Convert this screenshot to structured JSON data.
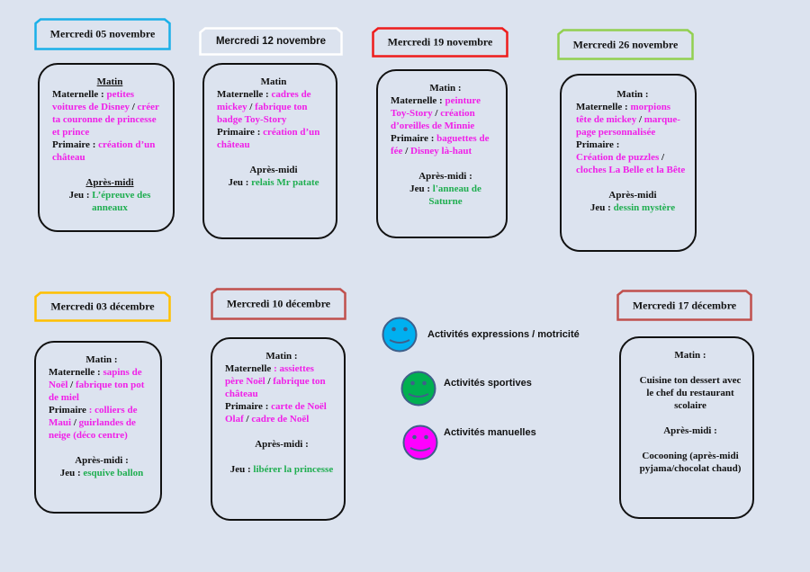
{
  "colors": {
    "pink": "#f020e8",
    "green": "#1fae50",
    "black": "#111111"
  },
  "cards": [
    {
      "title": "Mercredi 05 novembre",
      "border": "#1ab0e8",
      "lines": [
        {
          "a": "c",
          "u": true,
          "s": [
            [
              "Matin",
              "k"
            ]
          ]
        },
        {
          "s": [
            [
              "Maternelle : ",
              "k"
            ],
            [
              "petites",
              "p"
            ]
          ]
        },
        {
          "s": [
            [
              "voitures de Disney",
              "p"
            ],
            [
              " / ",
              "k"
            ],
            [
              "créer",
              "p"
            ]
          ]
        },
        {
          "s": [
            [
              "ta couronne de princesse",
              "p"
            ]
          ]
        },
        {
          "s": [
            [
              "et prince",
              "p"
            ]
          ]
        },
        {
          "s": [
            [
              "Primaire : ",
              "k"
            ],
            [
              "création d’un",
              "p"
            ]
          ]
        },
        {
          "s": [
            [
              "château",
              "p"
            ]
          ]
        },
        {
          "s": []
        },
        {
          "a": "c",
          "u": true,
          "s": [
            [
              "Après-midi",
              "k"
            ]
          ]
        },
        {
          "a": "c",
          "s": [
            [
              "Jeu : ",
              "k"
            ],
            [
              "L’épreuve des",
              "g"
            ]
          ]
        },
        {
          "a": "c",
          "s": [
            [
              "anneaux",
              "g"
            ]
          ]
        }
      ]
    },
    {
      "title": "Mercredi 12 novembre",
      "border": "#ffffff",
      "sans": true,
      "lines": [
        {
          "a": "c",
          "s": [
            [
              "Matin",
              "k"
            ]
          ]
        },
        {
          "s": [
            [
              "Maternelle : ",
              "k"
            ],
            [
              "cadres de",
              "p"
            ]
          ]
        },
        {
          "s": [
            [
              "mickey",
              "p"
            ],
            [
              " / ",
              "k"
            ],
            [
              "fabrique ton",
              "p"
            ]
          ]
        },
        {
          "s": [
            [
              "badge Toy-Story",
              "p"
            ]
          ]
        },
        {
          "s": [
            [
              "Primaire : ",
              "k"
            ],
            [
              "création d’un",
              "p"
            ]
          ]
        },
        {
          "s": [
            [
              "château",
              "p"
            ]
          ]
        },
        {
          "s": []
        },
        {
          "a": "c",
          "s": [
            [
              "Après-midi",
              "k"
            ]
          ]
        },
        {
          "a": "c",
          "s": [
            [
              "Jeu : ",
              "k"
            ],
            [
              "relais Mr patate",
              "g"
            ]
          ]
        }
      ]
    },
    {
      "title": "Mercredi 19 novembre",
      "border": "#ee1c1c",
      "lines": [
        {
          "a": "c",
          "s": [
            [
              "Matin :",
              "k"
            ]
          ]
        },
        {
          "s": [
            [
              "Maternelle : ",
              "k"
            ],
            [
              "peinture",
              "p"
            ]
          ]
        },
        {
          "s": [
            [
              "Toy-Story",
              "p"
            ],
            [
              " / ",
              "k"
            ],
            [
              "création",
              "p"
            ]
          ]
        },
        {
          "s": [
            [
              "d’oreilles de Minnie",
              "p"
            ]
          ]
        },
        {
          "s": [
            [
              "Primaire : ",
              "k"
            ],
            [
              "baguettes de",
              "p"
            ]
          ]
        },
        {
          "s": [
            [
              "fée",
              "p"
            ],
            [
              " / ",
              "k"
            ],
            [
              "Disney là-haut",
              "p"
            ]
          ]
        },
        {
          "s": []
        },
        {
          "a": "c",
          "s": [
            [
              "Après-midi :",
              "k"
            ]
          ]
        },
        {
          "a": "c",
          "s": [
            [
              "Jeu : ",
              "k"
            ],
            [
              "l'anneau de",
              "g"
            ]
          ]
        },
        {
          "a": "c",
          "s": [
            [
              "Saturne",
              "g"
            ]
          ]
        }
      ]
    },
    {
      "title": "Mercredi 26 novembre",
      "border": "#92d050",
      "lines": [
        {
          "a": "c",
          "s": [
            [
              "Matin :",
              "k"
            ]
          ]
        },
        {
          "s": [
            [
              "Maternelle : ",
              "k"
            ],
            [
              "morpions",
              "p"
            ]
          ]
        },
        {
          "s": [
            [
              "tête de mickey",
              "p"
            ],
            [
              " / ",
              "k"
            ],
            [
              "marque-",
              "p"
            ]
          ]
        },
        {
          "s": [
            [
              "page personnalisée",
              "p"
            ]
          ]
        },
        {
          "s": [
            [
              "Primaire :",
              "k"
            ]
          ]
        },
        {
          "s": [
            [
              "Création de puzzles",
              "p"
            ],
            [
              " /",
              "k"
            ]
          ]
        },
        {
          "s": [
            [
              "cloches La Belle et la Bête",
              "p"
            ]
          ]
        },
        {
          "s": []
        },
        {
          "a": "c",
          "s": [
            [
              "Après-midi",
              "k"
            ]
          ]
        },
        {
          "a": "c",
          "s": [
            [
              "Jeu : ",
              "k"
            ],
            [
              "dessin mystère",
              "g"
            ]
          ]
        }
      ]
    },
    {
      "title": "Mercredi 03 décembre",
      "border": "#ffc000",
      "lines": [
        {
          "a": "c",
          "s": [
            [
              "Matin :",
              "k"
            ]
          ]
        },
        {
          "s": [
            [
              "Maternelle : ",
              "k"
            ],
            [
              "sapins de",
              "p"
            ]
          ]
        },
        {
          "s": [
            [
              "Noël",
              "p"
            ],
            [
              " / ",
              "k"
            ],
            [
              "fabrique ton pot",
              "p"
            ]
          ]
        },
        {
          "s": [
            [
              "de miel",
              "p"
            ]
          ]
        },
        {
          "s": [
            [
              "Primaire ",
              "k"
            ],
            [
              ": colliers de",
              "p"
            ]
          ]
        },
        {
          "s": [
            [
              "Maui",
              "p"
            ],
            [
              " / ",
              "k"
            ],
            [
              "guirlandes de",
              "p"
            ]
          ]
        },
        {
          "s": [
            [
              "neige (déco centre)",
              "p"
            ]
          ]
        },
        {
          "s": []
        },
        {
          "a": "c",
          "s": [
            [
              "Après-midi :",
              "k"
            ]
          ]
        },
        {
          "a": "c",
          "s": [
            [
              "Jeu : ",
              "k"
            ],
            [
              "esquive ballon",
              "g"
            ]
          ]
        }
      ]
    },
    {
      "title": "Mercredi 10 décembre",
      "border": "#c0504d",
      "lines": [
        {
          "a": "c",
          "s": [
            [
              "Matin :",
              "k"
            ]
          ]
        },
        {
          "s": [
            [
              "Maternelle ",
              "k"
            ],
            [
              ": assiettes",
              "p"
            ]
          ]
        },
        {
          "s": [
            [
              "père Noël",
              "p"
            ],
            [
              " / ",
              "k"
            ],
            [
              "fabrique ton",
              "p"
            ]
          ]
        },
        {
          "s": [
            [
              "château",
              "p"
            ]
          ]
        },
        {
          "s": [
            [
              "Primaire : ",
              "k"
            ],
            [
              "carte de Noël",
              "p"
            ]
          ]
        },
        {
          "s": [
            [
              "Olaf",
              "p"
            ],
            [
              " / ",
              "k"
            ],
            [
              "cadre de Noël",
              "p"
            ]
          ]
        },
        {
          "s": []
        },
        {
          "a": "c",
          "s": [
            [
              "Après-midi :",
              "k"
            ]
          ]
        },
        {
          "s": []
        },
        {
          "a": "c",
          "s": [
            [
              "Jeu : ",
              "k"
            ],
            [
              "libérer la princesse",
              "g"
            ]
          ]
        }
      ]
    },
    {
      "title": "Mercredi 17 décembre",
      "border": "#c0504d",
      "lines": [
        {
          "a": "c",
          "s": [
            [
              "Matin :",
              "k"
            ]
          ]
        },
        {
          "s": []
        },
        {
          "a": "c",
          "s": [
            [
              "Cuisine ton dessert avec",
              "k"
            ]
          ]
        },
        {
          "a": "c",
          "s": [
            [
              "le chef du restaurant",
              "k"
            ]
          ]
        },
        {
          "a": "c",
          "s": [
            [
              "scolaire",
              "k"
            ]
          ]
        },
        {
          "s": []
        },
        {
          "a": "c",
          "s": [
            [
              "Après-midi :",
              "k"
            ]
          ]
        },
        {
          "s": []
        },
        {
          "a": "c",
          "s": [
            [
              "Cocooning (après-midi",
              "k"
            ]
          ]
        },
        {
          "a": "c",
          "s": [
            [
              "pyjama/chocolat chaud)",
              "k"
            ]
          ]
        }
      ]
    }
  ],
  "legend": [
    {
      "label": "Activités expressions / motricité",
      "color": "#00b0f0",
      "icon": "smiley-icon"
    },
    {
      "label": "Activités sportives",
      "color": "#00b050",
      "icon": "smiley-icon"
    },
    {
      "label": "Activités manuelles",
      "color": "#ff00ff",
      "icon": "smiley-icon"
    }
  ]
}
